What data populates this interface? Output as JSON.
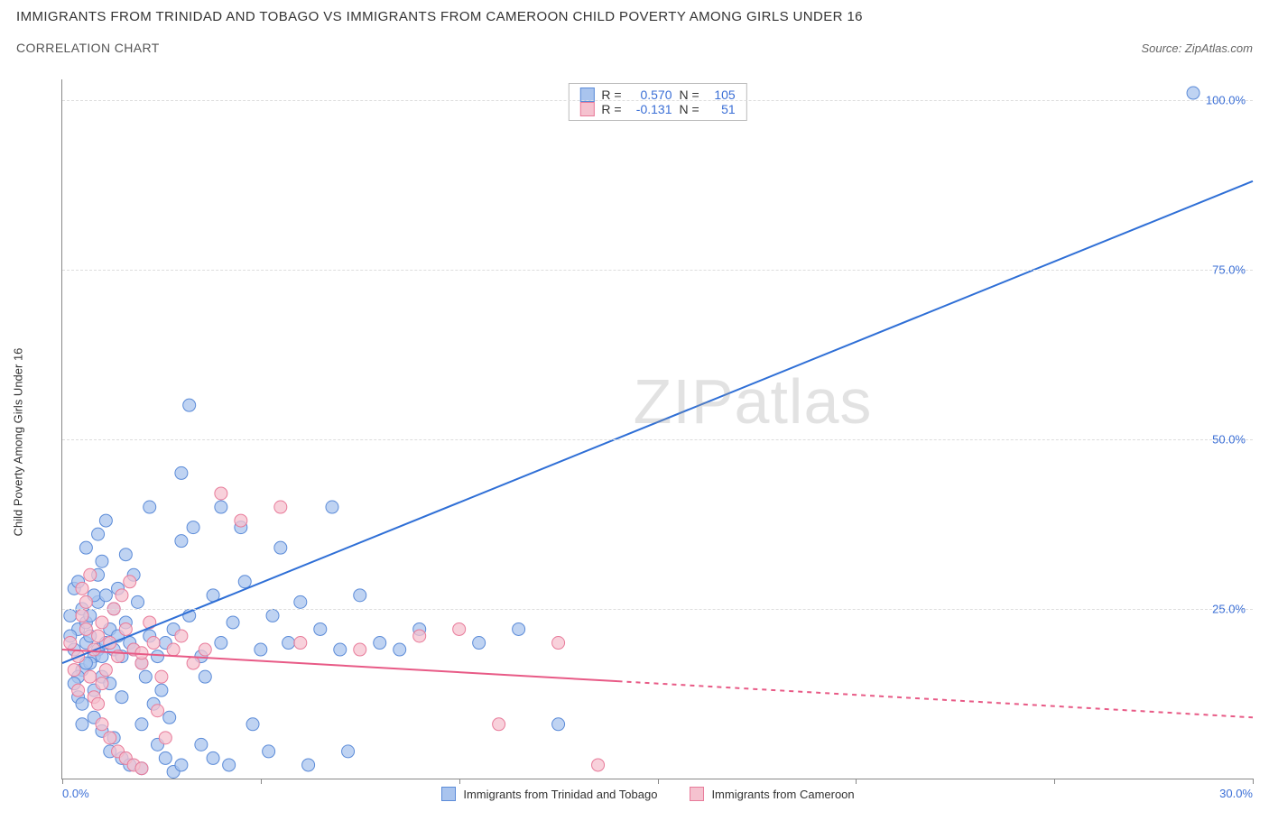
{
  "title": "IMMIGRANTS FROM TRINIDAD AND TOBAGO VS IMMIGRANTS FROM CAMEROON CHILD POVERTY AMONG GIRLS UNDER 16",
  "subtitle": "CORRELATION CHART",
  "source_prefix": "Source: ",
  "source_name": "ZipAtlas.com",
  "ylabel": "Child Poverty Among Girls Under 16",
  "watermark_a": "ZIP",
  "watermark_b": "atlas",
  "chart": {
    "type": "scatter",
    "xlim": [
      0,
      30
    ],
    "ylim": [
      0,
      103
    ],
    "xticks": [
      0,
      5,
      10,
      15,
      20,
      25,
      30
    ],
    "xtick_labels_shown": {
      "0": "0.0%",
      "30": "30.0%"
    },
    "yticks": [
      25,
      50,
      75,
      100
    ],
    "ytick_labels": [
      "25.0%",
      "50.0%",
      "75.0%",
      "100.0%"
    ],
    "grid_color": "#dddddd",
    "background_color": "#ffffff",
    "axis_color": "#888888",
    "tick_label_color": "#3b6fd6",
    "series": [
      {
        "name": "Immigrants from Trinidad and Tobago",
        "color_fill": "#a9c4ee",
        "color_stroke": "#5b8bd8",
        "marker_radius": 7,
        "marker_opacity": 0.75,
        "trend": {
          "x1": 0,
          "y1": 17,
          "x2": 30,
          "y2": 88,
          "solid_until_x": 30,
          "color": "#2f6fd6",
          "width": 2
        },
        "stats": {
          "R": "0.570",
          "N": "105"
        },
        "points": [
          [
            0.3,
            19
          ],
          [
            0.5,
            16
          ],
          [
            0.6,
            20
          ],
          [
            0.4,
            22
          ],
          [
            0.8,
            18
          ],
          [
            0.2,
            21
          ],
          [
            0.7,
            17
          ],
          [
            0.9,
            19
          ],
          [
            0.4,
            15
          ],
          [
            0.6,
            23
          ],
          [
            0.3,
            14
          ],
          [
            0.5,
            25
          ],
          [
            0.8,
            13
          ],
          [
            0.2,
            24
          ],
          [
            1.0,
            18
          ],
          [
            0.7,
            21
          ],
          [
            0.4,
            12
          ],
          [
            0.9,
            26
          ],
          [
            0.6,
            17
          ],
          [
            0.3,
            28
          ],
          [
            1.1,
            20
          ],
          [
            0.5,
            11
          ],
          [
            0.8,
            27
          ],
          [
            1.3,
            19
          ],
          [
            0.4,
            29
          ],
          [
            1.0,
            15
          ],
          [
            0.7,
            24
          ],
          [
            1.2,
            22
          ],
          [
            0.9,
            30
          ],
          [
            1.5,
            18
          ],
          [
            0.6,
            34
          ],
          [
            1.1,
            27
          ],
          [
            0.8,
            9
          ],
          [
            1.4,
            21
          ],
          [
            1.0,
            32
          ],
          [
            0.5,
            8
          ],
          [
            1.3,
            25
          ],
          [
            1.7,
            20
          ],
          [
            0.9,
            36
          ],
          [
            1.2,
            14
          ],
          [
            1.6,
            23
          ],
          [
            1.0,
            7
          ],
          [
            1.8,
            19
          ],
          [
            1.4,
            28
          ],
          [
            2.0,
            17
          ],
          [
            1.1,
            38
          ],
          [
            1.5,
            12
          ],
          [
            2.2,
            21
          ],
          [
            1.3,
            6
          ],
          [
            1.9,
            26
          ],
          [
            2.4,
            18
          ],
          [
            1.6,
            33
          ],
          [
            2.1,
            15
          ],
          [
            1.2,
            4
          ],
          [
            2.6,
            20
          ],
          [
            1.8,
            30
          ],
          [
            2.3,
            11
          ],
          [
            1.5,
            3
          ],
          [
            2.8,
            22
          ],
          [
            2.0,
            8
          ],
          [
            3.0,
            35
          ],
          [
            2.5,
            13
          ],
          [
            1.7,
            2
          ],
          [
            3.2,
            24
          ],
          [
            2.2,
            40
          ],
          [
            3.5,
            18
          ],
          [
            2.7,
            9
          ],
          [
            2.0,
            1.5
          ],
          [
            3.8,
            27
          ],
          [
            3.0,
            45
          ],
          [
            2.4,
            5
          ],
          [
            4.0,
            20
          ],
          [
            3.3,
            37
          ],
          [
            2.6,
            3
          ],
          [
            4.3,
            23
          ],
          [
            3.6,
            15
          ],
          [
            2.8,
            1
          ],
          [
            4.6,
            29
          ],
          [
            3.2,
            55
          ],
          [
            3.0,
            2
          ],
          [
            5.0,
            19
          ],
          [
            3.5,
            5
          ],
          [
            4.0,
            40
          ],
          [
            5.3,
            24
          ],
          [
            3.8,
            3
          ],
          [
            4.5,
            37
          ],
          [
            5.7,
            20
          ],
          [
            4.2,
            2
          ],
          [
            6.0,
            26
          ],
          [
            4.8,
            8
          ],
          [
            6.5,
            22
          ],
          [
            5.2,
            4
          ],
          [
            7.0,
            19
          ],
          [
            5.5,
            34
          ],
          [
            7.5,
            27
          ],
          [
            6.2,
            2
          ],
          [
            8.0,
            20
          ],
          [
            6.8,
            40
          ],
          [
            8.5,
            19
          ],
          [
            7.2,
            4
          ],
          [
            9.0,
            22
          ],
          [
            10.5,
            20
          ],
          [
            11.5,
            22
          ],
          [
            12.5,
            8
          ],
          [
            28.5,
            101
          ]
        ]
      },
      {
        "name": "Immigrants from Cameroon",
        "color_fill": "#f5c2cf",
        "color_stroke": "#e87b9a",
        "marker_radius": 7,
        "marker_opacity": 0.75,
        "trend": {
          "x1": 0,
          "y1": 19,
          "x2": 30,
          "y2": 9,
          "solid_until_x": 14,
          "color": "#e85a86",
          "width": 2
        },
        "stats": {
          "R": "-0.131",
          "N": "51"
        },
        "points": [
          [
            0.2,
            20
          ],
          [
            0.4,
            18
          ],
          [
            0.6,
            22
          ],
          [
            0.3,
            16
          ],
          [
            0.8,
            19
          ],
          [
            0.5,
            24
          ],
          [
            0.7,
            15
          ],
          [
            0.9,
            21
          ],
          [
            0.4,
            13
          ],
          [
            1.0,
            23
          ],
          [
            0.6,
            26
          ],
          [
            0.8,
            12
          ],
          [
            1.2,
            20
          ],
          [
            0.5,
            28
          ],
          [
            1.0,
            14
          ],
          [
            1.4,
            18
          ],
          [
            0.7,
            30
          ],
          [
            1.1,
            16
          ],
          [
            1.6,
            22
          ],
          [
            0.9,
            11
          ],
          [
            1.3,
            25
          ],
          [
            1.8,
            19
          ],
          [
            1.0,
            8
          ],
          [
            1.5,
            27
          ],
          [
            2.0,
            17
          ],
          [
            1.2,
            6
          ],
          [
            1.7,
            29
          ],
          [
            2.3,
            20
          ],
          [
            1.4,
            4
          ],
          [
            2.0,
            18.5
          ],
          [
            2.5,
            15
          ],
          [
            1.6,
            3
          ],
          [
            2.2,
            23
          ],
          [
            2.8,
            19
          ],
          [
            1.8,
            2
          ],
          [
            2.4,
            10
          ],
          [
            3.0,
            21
          ],
          [
            2.0,
            1.5
          ],
          [
            3.3,
            17
          ],
          [
            2.6,
            6
          ],
          [
            3.6,
            19
          ],
          [
            4.0,
            42
          ],
          [
            4.5,
            38
          ],
          [
            5.5,
            40
          ],
          [
            6.0,
            20
          ],
          [
            7.5,
            19
          ],
          [
            9.0,
            21
          ],
          [
            10.0,
            22
          ],
          [
            11.0,
            8
          ],
          [
            12.5,
            20
          ],
          [
            13.5,
            2
          ]
        ]
      }
    ]
  },
  "stats_box": {
    "labels": {
      "r": "R =",
      "n": "N ="
    }
  },
  "legend": {
    "series1": "Immigrants from Trinidad and Tobago",
    "series2": "Immigrants from Cameroon"
  }
}
